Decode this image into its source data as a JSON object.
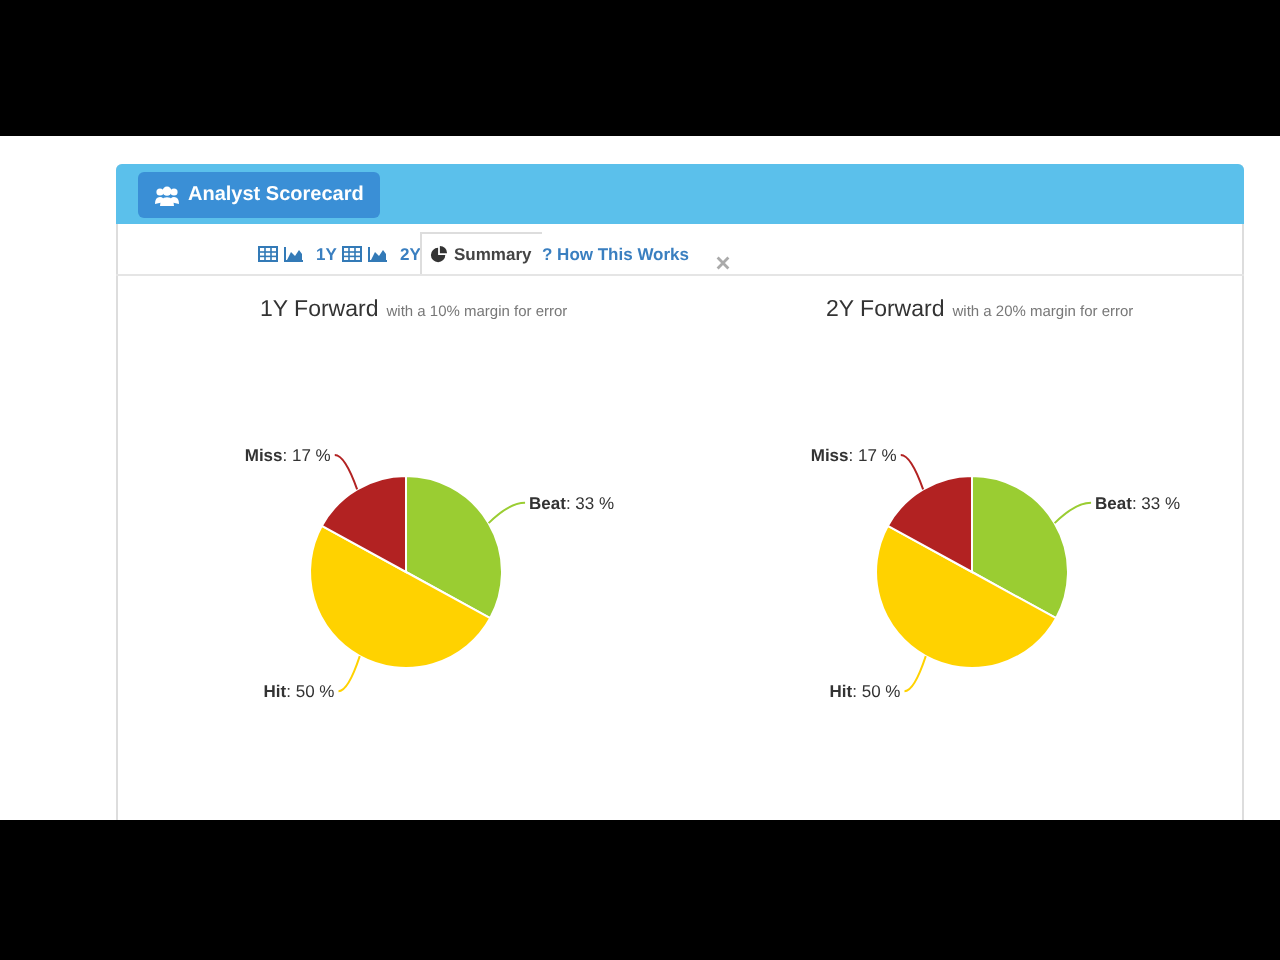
{
  "chart_data": [
    {
      "type": "pie",
      "title": "1Y Forward",
      "subtitle": "with a 10% margin for error",
      "categories": [
        "Beat",
        "Hit",
        "Miss"
      ],
      "values": [
        33,
        50,
        17
      ],
      "value_labels": [
        ": 33 %",
        ": 50 %",
        ": 17 %"
      ],
      "colors": [
        "#9acd32",
        "#ffd200",
        "#b22222"
      ],
      "annotations": [
        "Analyst Scorecard",
        "1Y",
        "2Y",
        "Summary",
        "? How This Works"
      ]
    },
    {
      "type": "pie",
      "title": "2Y Forward",
      "subtitle": "with a 20% margin for error",
      "categories": [
        "Beat",
        "Hit",
        "Miss"
      ],
      "values": [
        33,
        50,
        17
      ],
      "value_labels": [
        ": 33 %",
        ": 50 %",
        ": 17 %"
      ],
      "colors": [
        "#9acd32",
        "#ffd200",
        "#b22222"
      ]
    }
  ]
}
